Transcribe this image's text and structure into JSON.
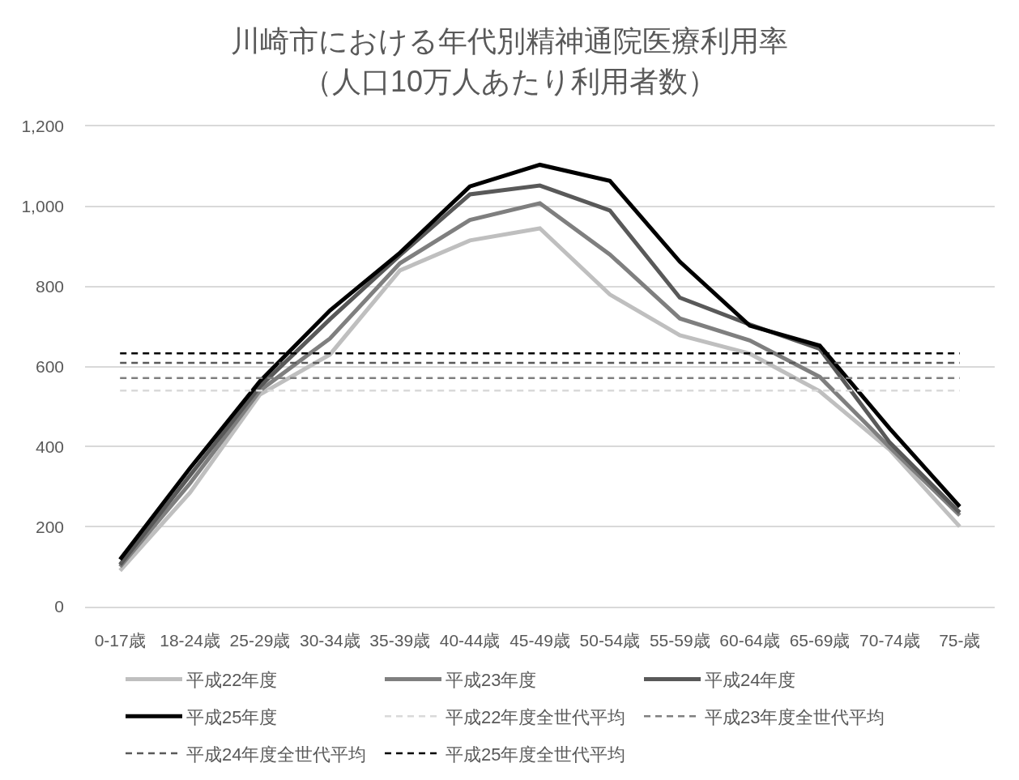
{
  "chart_data": {
    "type": "line",
    "title": "川崎市における年代別精神通院医療利用率",
    "subtitle": "（人口10万人あたり利用者数）",
    "categories": [
      "0-17歳",
      "18-24歳",
      "25-29歳",
      "30-34歳",
      "35-39歳",
      "40-44歳",
      "45-49歳",
      "50-54歳",
      "55-59歳",
      "60-64歳",
      "65-69歳",
      "70-74歳",
      "75-歳"
    ],
    "series": [
      {
        "name": "平成22年度",
        "color": "#bfbfbf",
        "line_style": "solid",
        "values": [
          90,
          285,
          530,
          630,
          840,
          915,
          945,
          780,
          678,
          632,
          538,
          392,
          200
        ]
      },
      {
        "name": "平成23年度",
        "color": "#7f7f7f",
        "line_style": "solid",
        "values": [
          100,
          308,
          540,
          670,
          858,
          966,
          1008,
          880,
          720,
          665,
          574,
          398,
          228
        ]
      },
      {
        "name": "平成24年度",
        "color": "#595959",
        "line_style": "solid",
        "values": [
          105,
          328,
          550,
          718,
          878,
          1030,
          1052,
          990,
          772,
          705,
          644,
          410,
          235
        ]
      },
      {
        "name": "平成25年度",
        "color": "#000000",
        "line_style": "solid",
        "values": [
          118,
          346,
          563,
          740,
          884,
          1050,
          1104,
          1064,
          862,
          702,
          652,
          445,
          250
        ]
      },
      {
        "name": "平成22年度全世代平均",
        "color": "#d9d9d9",
        "line_style": "dashed",
        "values": [
          540,
          540,
          540,
          540,
          540,
          540,
          540,
          540,
          540,
          540,
          540,
          540,
          540
        ]
      },
      {
        "name": "平成23年度全世代平均",
        "color": "#7f7f7f",
        "line_style": "dashed",
        "values": [
          571,
          571,
          571,
          571,
          571,
          571,
          571,
          571,
          571,
          571,
          571,
          571,
          571
        ]
      },
      {
        "name": "平成24年度全世代平均",
        "color": "#595959",
        "line_style": "dashed",
        "values": [
          609,
          609,
          609,
          609,
          609,
          609,
          609,
          609,
          609,
          609,
          609,
          609,
          609
        ]
      },
      {
        "name": "平成25年度全世代平均",
        "color": "#000000",
        "line_style": "dashed",
        "values": [
          633,
          633,
          633,
          633,
          633,
          633,
          633,
          633,
          633,
          633,
          633,
          633,
          633
        ]
      }
    ],
    "ylim": [
      0,
      1200
    ],
    "yticks": [
      0,
      200,
      400,
      600,
      800,
      {
        "value": 1000,
        "label": "1,000"
      },
      {
        "value": 1200,
        "label": "1,200"
      }
    ],
    "grid": "y",
    "legend": "bottom",
    "marker": "none"
  }
}
